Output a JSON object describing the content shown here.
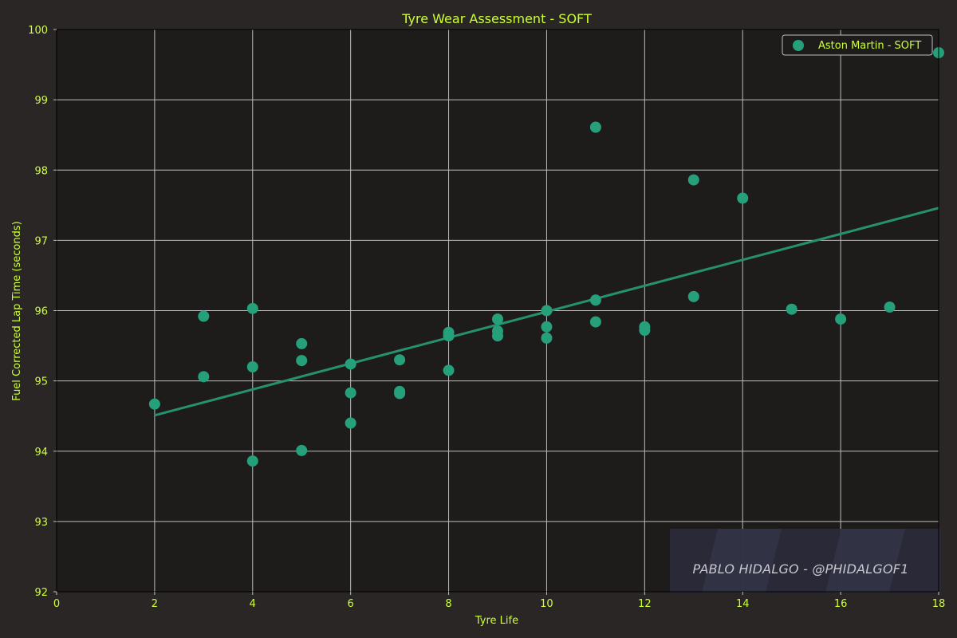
{
  "colors": {
    "background": "#292625",
    "plot_background": "#1e1c1b",
    "grid": "#bdbdbd",
    "text": "#ccff33",
    "series": "#25a07a",
    "trend": "#25916f",
    "watermark_bg": "#2a2b3b"
  },
  "watermark": {
    "text": "PABLO HIDALGO - @PHIDALGOF1"
  },
  "chart_data": {
    "type": "scatter",
    "title": "Tyre Wear Assessment - SOFT",
    "xlabel": "Tyre Life",
    "ylabel": "Fuel Corrected Lap Time (seconds)",
    "xlim": [
      0,
      18
    ],
    "ylim": [
      92,
      100
    ],
    "xticks": [
      "0",
      "2",
      "4",
      "6",
      "8",
      "10",
      "12",
      "14",
      "16",
      "18"
    ],
    "yticks": [
      "92",
      "93",
      "94",
      "95",
      "96",
      "97",
      "98",
      "99",
      "100"
    ],
    "grid": true,
    "legend_position": "top-right",
    "series": [
      {
        "name": "Aston Martin - SOFT",
        "points": [
          [
            2,
            94.67
          ],
          [
            3,
            95.92
          ],
          [
            3,
            95.06
          ],
          [
            4,
            96.03
          ],
          [
            4,
            95.2
          ],
          [
            4,
            93.86
          ],
          [
            5,
            95.53
          ],
          [
            5,
            95.29
          ],
          [
            5,
            94.01
          ],
          [
            6,
            95.24
          ],
          [
            6,
            94.83
          ],
          [
            6,
            94.4
          ],
          [
            7,
            95.3
          ],
          [
            7,
            94.85
          ],
          [
            7,
            94.82
          ],
          [
            8,
            95.69
          ],
          [
            8,
            95.64
          ],
          [
            8,
            95.15
          ],
          [
            9,
            95.88
          ],
          [
            9,
            95.71
          ],
          [
            9,
            95.64
          ],
          [
            10,
            96.0
          ],
          [
            10,
            95.77
          ],
          [
            10,
            95.61
          ],
          [
            11,
            98.61
          ],
          [
            11,
            96.15
          ],
          [
            11,
            95.84
          ],
          [
            12,
            95.77
          ],
          [
            12,
            95.72
          ],
          [
            13,
            97.86
          ],
          [
            13,
            96.2
          ],
          [
            14,
            97.6
          ],
          [
            15,
            96.02
          ],
          [
            16,
            95.88
          ],
          [
            17,
            96.05
          ],
          [
            18,
            99.67
          ]
        ]
      }
    ],
    "trendline": {
      "x": [
        2,
        18
      ],
      "y": [
        94.51,
        97.46
      ]
    }
  }
}
